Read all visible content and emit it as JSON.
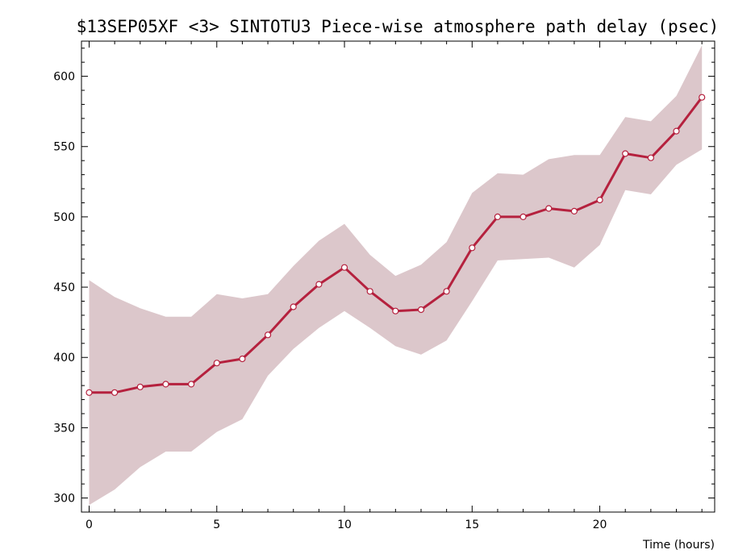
{
  "chart_data": {
    "type": "line",
    "title": "$13SEP05XF <3>  SINTOTU3  Piece-wise atmosphere path delay (psec)",
    "xlabel": "Time (hours)",
    "ylabel": "",
    "xlim": [
      -0.3,
      24.5
    ],
    "ylim": [
      290,
      625
    ],
    "x_ticks": [
      0,
      5,
      10,
      15,
      20
    ],
    "y_ticks": [
      300,
      350,
      400,
      450,
      500,
      550,
      600
    ],
    "grid": false,
    "colors": {
      "line": "#b5213e",
      "band": "#dcc7cb",
      "marker_fill": "#ffffff"
    },
    "series": [
      {
        "x": [
          0,
          1,
          2,
          3,
          4,
          5,
          6,
          7,
          8,
          9,
          10,
          11,
          12,
          13,
          14,
          15,
          16,
          17,
          18,
          19,
          20,
          21,
          22,
          23,
          24
        ],
        "values": [
          375,
          375,
          379,
          381,
          381,
          396,
          399,
          416,
          436,
          452,
          464,
          447,
          433,
          434,
          447,
          478,
          500,
          500,
          506,
          504,
          512,
          545,
          542,
          561,
          585
        ],
        "upper": [
          455,
          443,
          435,
          429,
          429,
          445,
          442,
          445,
          465,
          483,
          495,
          473,
          458,
          466,
          482,
          517,
          531,
          530,
          541,
          544,
          544,
          571,
          568,
          586,
          622
        ],
        "lower": [
          295,
          306,
          322,
          333,
          333,
          347,
          356,
          387,
          406,
          421,
          433,
          421,
          408,
          402,
          412,
          440,
          469,
          470,
          471,
          464,
          480,
          519,
          516,
          537,
          548
        ]
      }
    ]
  }
}
